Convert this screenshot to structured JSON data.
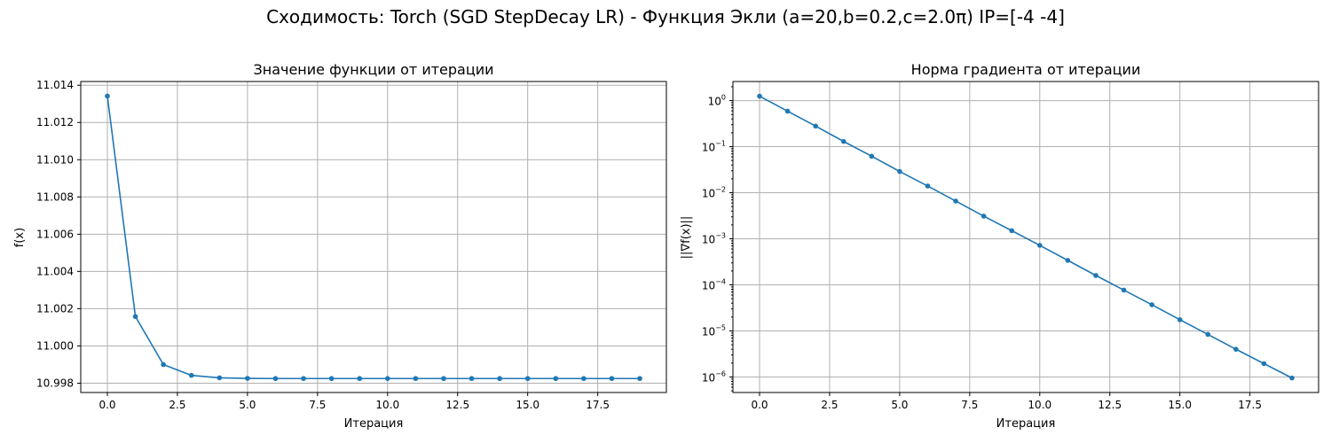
{
  "figure": {
    "suptitle": "Сходимость: Torch (SGD StepDecay LR) - Функция Экли (a=20,b=0.2,c=2.0π) IP=[-4 -4]"
  },
  "chart_data": [
    {
      "type": "line",
      "title": "Значение функции от итерации",
      "xlabel": "Итерация",
      "ylabel": "f(x)",
      "xscale": "linear",
      "yscale": "linear",
      "xlim": [
        -0.95,
        19.95
      ],
      "ylim": [
        10.9975,
        11.0142
      ],
      "xticks": [
        0,
        2.5,
        5,
        7.5,
        10,
        12.5,
        15,
        17.5
      ],
      "xtick_labels": [
        "0.0",
        "2.5",
        "5.0",
        "7.5",
        "10.0",
        "12.5",
        "15.0",
        "17.5"
      ],
      "yticks": [
        10.998,
        11.0,
        11.002,
        11.004,
        11.006,
        11.008,
        11.01,
        11.012,
        11.014
      ],
      "ytick_labels": [
        "10.998",
        "11.000",
        "11.002",
        "11.004",
        "11.006",
        "11.008",
        "11.010",
        "11.012",
        "11.014"
      ],
      "grid": true,
      "color": "#1f77b4",
      "series": [
        {
          "x": [
            0,
            1,
            2,
            3,
            4,
            5,
            6,
            7,
            8,
            9,
            10,
            11,
            12,
            13,
            14,
            15,
            16,
            17,
            18,
            19
          ],
          "y": [
            11.01342,
            11.00158,
            10.999,
            10.99842,
            10.99829,
            10.99826,
            10.99825,
            10.99825,
            10.99825,
            10.99825,
            10.99825,
            10.99825,
            10.99825,
            10.99825,
            10.99825,
            10.99825,
            10.99825,
            10.99825,
            10.99825,
            10.99825
          ]
        }
      ]
    },
    {
      "type": "line",
      "title": "Норма градиента от итерации",
      "xlabel": "Итерация",
      "ylabel": "||∇f(x)||",
      "xscale": "linear",
      "yscale": "log",
      "xlim": [
        -0.95,
        19.95
      ],
      "ylim": [
        4.6e-07,
        2.6
      ],
      "xticks": [
        0,
        2.5,
        5,
        7.5,
        10,
        12.5,
        15,
        17.5
      ],
      "xtick_labels": [
        "0.0",
        "2.5",
        "5.0",
        "7.5",
        "10.0",
        "12.5",
        "15.0",
        "17.5"
      ],
      "ytick_exponents": [
        -6,
        -5,
        -4,
        -3,
        -2,
        -1,
        0
      ],
      "ytick_base": "10",
      "grid": true,
      "color": "#1f77b4",
      "series": [
        {
          "x": [
            0,
            1,
            2,
            3,
            4,
            5,
            6,
            7,
            8,
            9,
            10,
            11,
            12,
            13,
            14,
            15,
            16,
            17,
            18,
            19
          ],
          "y": [
            1.25,
            0.59,
            0.28,
            0.13,
            0.062,
            0.029,
            0.014,
            0.0066,
            0.0031,
            0.0015,
            0.00072,
            0.00034,
            0.00016,
            7.7e-05,
            3.7e-05,
            1.75e-05,
            8.4e-06,
            4e-06,
            1.95e-06,
            9.5e-07
          ]
        }
      ]
    }
  ]
}
